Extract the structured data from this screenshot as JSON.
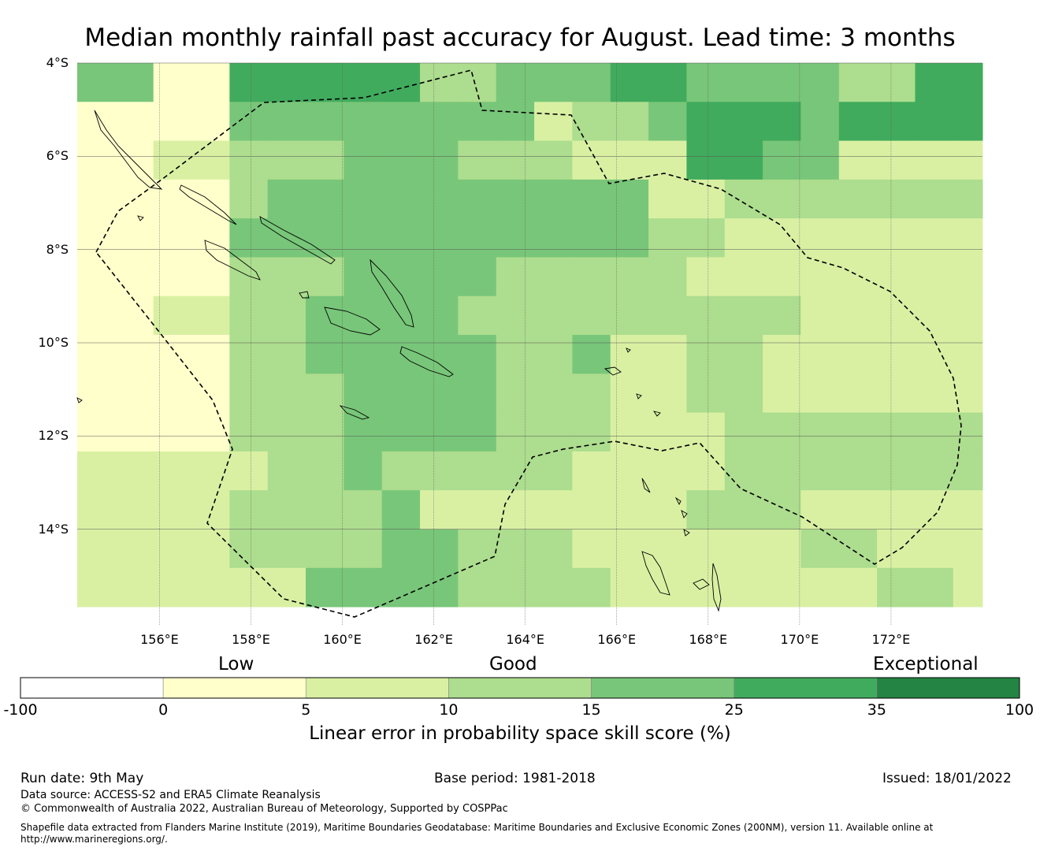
{
  "title": "Median monthly rainfall past accuracy for August. Lead time: 3 months",
  "axes": {
    "lat_labels": [
      {
        "value": -4,
        "label": "4°S"
      },
      {
        "value": -6,
        "label": "6°S"
      },
      {
        "value": -8,
        "label": "8°S"
      },
      {
        "value": -10,
        "label": "10°S"
      },
      {
        "value": -12,
        "label": "12°S"
      },
      {
        "value": -14,
        "label": "14°S"
      }
    ],
    "lon_labels": [
      {
        "value": 156,
        "label": "156°E"
      },
      {
        "value": 158,
        "label": "158°E"
      },
      {
        "value": 160,
        "label": "160°E"
      },
      {
        "value": 162,
        "label": "162°E"
      },
      {
        "value": 164,
        "label": "164°E"
      },
      {
        "value": 166,
        "label": "166°E"
      },
      {
        "value": 168,
        "label": "168°E"
      },
      {
        "value": 170,
        "label": "170°E"
      },
      {
        "value": 172,
        "label": "172°E"
      }
    ],
    "lon_range": [
      154.2,
      174.0
    ],
    "lat_range": [
      -16.05,
      -4.0
    ],
    "grid": true
  },
  "colorbar": {
    "title": "Linear error in probability space skill score (%)",
    "categories": [
      "Low",
      "Good",
      "Exceptional"
    ],
    "ticks": [
      "-100",
      "0",
      "5",
      "10",
      "15",
      "25",
      "35",
      "100"
    ],
    "colors": [
      "#ffffff",
      "#ffffcc",
      "#d9f0a3",
      "#addd8e",
      "#78c679",
      "#41ab5d",
      "#238443"
    ]
  },
  "grid_data": {
    "lon_start": 154.2,
    "lat_start": -4.0,
    "cell_size": 0.833,
    "legend": "digits index colorbar.colors: 0=-100..0, 1=0..5, 2=5..10, 3=10..15, 4=15..25, 5=25..35, 6=35..100",
    "rows": [
      "4411555553344455444433554556555",
      "1111444444442334555455555555554",
      "1122333444333222554422222333444",
      "1111344444444442233333333444444",
      "1111444444444443322222222222244",
      "1111333444433333222222222333333",
      "1122334444333333333222222233433",
      "1111334444433422332222222223333",
      "1111333444433322332222222222233",
      "1111333444433322233333333333333",
      "2222233433333222233333333334444",
      "2222333342222222333222222223333",
      "2222333344333222222332222223333",
      "2222224444333322222223322233333"
    ]
  },
  "footer": {
    "run_date": "Run date: 9th May",
    "base_period": "Base period: 1981-2018",
    "issued": "Issued: 18/01/2022",
    "data_source": "Data source: ACCESS-S2 and ERA5 Climate Reanalysis",
    "copyright": "© Commonwealth of Australia 2022, Australian Bureau of Meteorology, Supported by COSPPac",
    "shapefile_1": "Shapefile data extracted from Flanders Marine Institute (2019), Maritime Boundaries Geodatabase: Maritime Boundaries and Exclusive Economic Zones (200NM), version 11. Available online at",
    "shapefile_2": "http://www.marineregions.org/."
  }
}
